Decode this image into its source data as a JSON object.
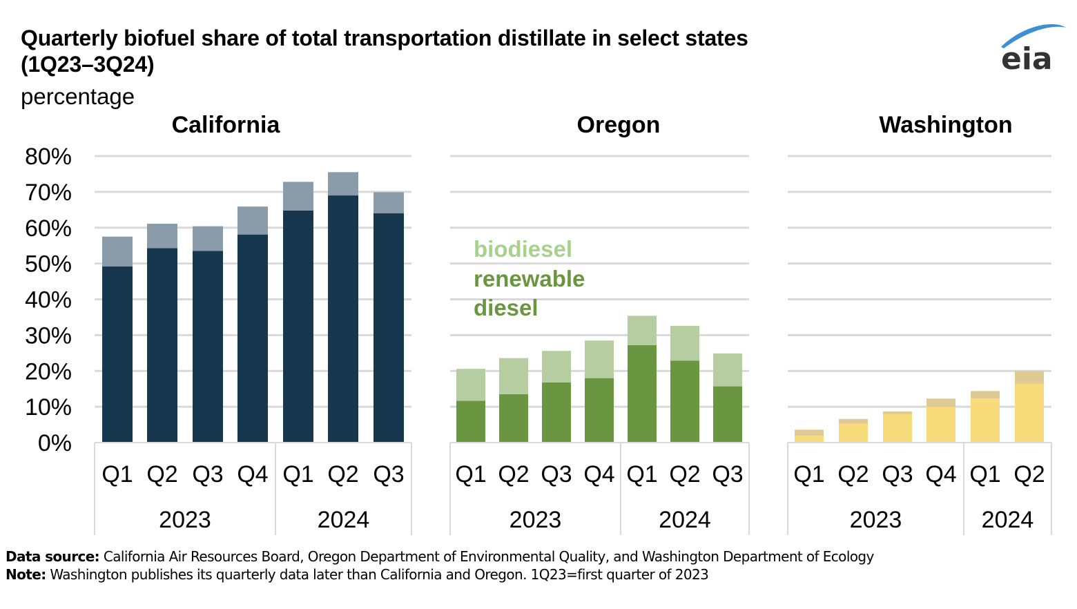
{
  "header": {
    "title_line1": "Quarterly biofuel share of total transportation distillate in select states",
    "title_line2": "(1Q23–3Q24)",
    "units": "percentage",
    "logo_text": "eia"
  },
  "footer": {
    "source_label": "Data source:",
    "source_text": "California Air Resources Board, Oregon Department of Environmental Quality, and Washington Department of Ecology",
    "note_label": "Note:",
    "note_text": "Washington publishes its quarterly data later than California and Oregon. 1Q23=first quarter of 2023"
  },
  "chart_data": [
    {
      "type": "bar",
      "stacked": true,
      "title": "California",
      "categories": [
        "Q1",
        "Q2",
        "Q3",
        "Q4",
        "Q1",
        "Q2",
        "Q3"
      ],
      "groups": [
        {
          "label": "2023",
          "count": 4
        },
        {
          "label": "2024",
          "count": 3
        }
      ],
      "series": [
        {
          "name": "renewable diesel",
          "color": "#17374f",
          "values": [
            49.2,
            54.3,
            53.5,
            58.1,
            64.8,
            69.0,
            64.0
          ]
        },
        {
          "name": "biodiesel",
          "color": "#8a9ba9",
          "values": [
            8.3,
            6.8,
            6.9,
            7.8,
            8.0,
            6.5,
            5.9
          ]
        }
      ],
      "ylim": [
        0,
        80
      ],
      "yticks": [
        "0%",
        "10%",
        "20%",
        "30%",
        "40%",
        "50%",
        "60%",
        "70%",
        "80%"
      ],
      "ylabel": "percentage",
      "grid": true
    },
    {
      "type": "bar",
      "stacked": true,
      "title": "Oregon",
      "categories": [
        "Q1",
        "Q2",
        "Q3",
        "Q4",
        "Q1",
        "Q2",
        "Q3"
      ],
      "groups": [
        {
          "label": "2023",
          "count": 4
        },
        {
          "label": "2024",
          "count": 3
        }
      ],
      "series": [
        {
          "name": "renewable diesel",
          "color": "#6a9541",
          "values": [
            11.7,
            13.5,
            16.8,
            18.0,
            27.2,
            22.9,
            15.7
          ]
        },
        {
          "name": "biodiesel",
          "color": "#b6cda1",
          "values": [
            8.9,
            10.1,
            8.8,
            10.5,
            8.2,
            9.7,
            9.2
          ]
        }
      ],
      "ylim": [
        0,
        80
      ],
      "grid": true,
      "legend": {
        "placement": "upper-left",
        "entries": [
          {
            "label": "biodiesel",
            "color": "#a9d18e"
          },
          {
            "label_line1": "renewable",
            "label_line2": "diesel",
            "color": "#6a9541"
          }
        ]
      }
    },
    {
      "type": "bar",
      "stacked": true,
      "title": "Washington",
      "categories": [
        "Q1",
        "Q2",
        "Q3",
        "Q4",
        "Q1",
        "Q2"
      ],
      "groups": [
        {
          "label": "2023",
          "count": 4
        },
        {
          "label": "2024",
          "count": 2
        }
      ],
      "series": [
        {
          "name": "renewable diesel",
          "color": "#f8dc7b",
          "values": [
            1.9,
            5.3,
            8.0,
            10.0,
            12.3,
            16.4
          ]
        },
        {
          "name": "biodiesel",
          "color": "#dfca96",
          "values": [
            1.7,
            1.3,
            0.7,
            2.3,
            2.1,
            3.6
          ]
        }
      ],
      "ylim": [
        0,
        80
      ],
      "grid": true
    }
  ]
}
